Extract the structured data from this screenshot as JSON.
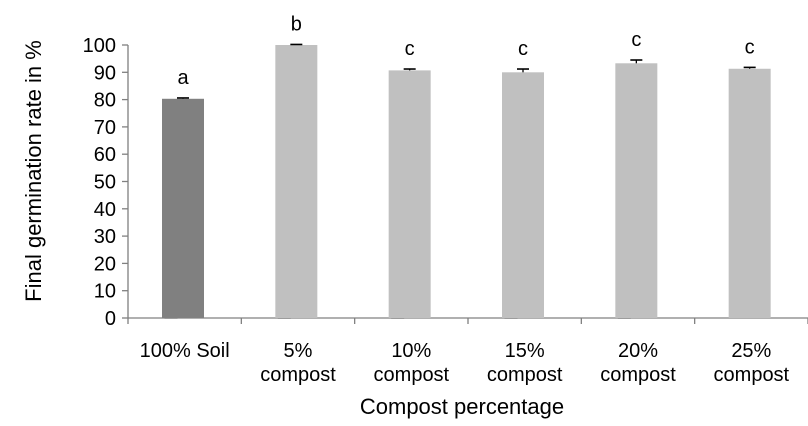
{
  "chart_data": {
    "type": "bar",
    "xlabel": "Compost percentage",
    "ylabel": "Final germination rate in %",
    "ylim": [
      0,
      100
    ],
    "yticks": [
      0,
      10,
      20,
      30,
      40,
      50,
      60,
      70,
      80,
      90,
      100
    ],
    "grid": false,
    "categories": [
      [
        "100% Soil"
      ],
      [
        "5%",
        "compost"
      ],
      [
        "10%",
        "compost"
      ],
      [
        "15%",
        "compost"
      ],
      [
        "20%",
        "compost"
      ],
      [
        "25%",
        "compost"
      ]
    ],
    "bars": [
      {
        "value": 80.3,
        "error": 0.3,
        "label": "a",
        "color": "#808080"
      },
      {
        "value": 100.0,
        "error": 0.2,
        "label": "b",
        "color": "#c0c0c0"
      },
      {
        "value": 90.7,
        "error": 0.5,
        "label": "c",
        "color": "#c0c0c0"
      },
      {
        "value": 90.0,
        "error": 1.2,
        "label": "c",
        "color": "#c0c0c0"
      },
      {
        "value": 93.3,
        "error": 1.2,
        "label": "c",
        "color": "#c0c0c0"
      },
      {
        "value": 91.3,
        "error": 0.5,
        "label": "c",
        "color": "#c0c0c0"
      }
    ],
    "zero_bars": [
      {
        "category_index": 0,
        "value": 0
      },
      {
        "category_index": 1,
        "value": 0
      },
      {
        "category_index": 2,
        "value": 0
      },
      {
        "category_index": 3,
        "value": 0
      },
      {
        "category_index": 4,
        "value": 0
      }
    ],
    "colors": {
      "axis": "#808080",
      "soil_bar": "#808080",
      "compost_bar": "#c0c0c0",
      "error_bar": "#000000"
    }
  }
}
